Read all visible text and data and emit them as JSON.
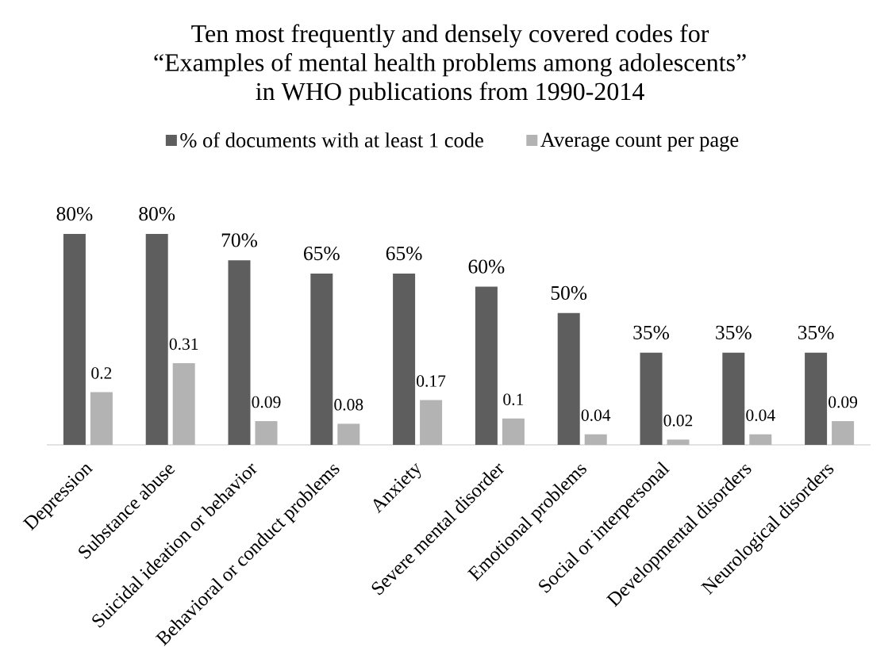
{
  "chart_data": {
    "type": "bar",
    "title": "Ten most frequently and densely covered codes for “Examples of mental health problems among adolescents” in WHO publications from 1990-2014",
    "categories": [
      "Depression",
      "Substance abuse",
      "Suicidal ideation or behavior",
      "Behavioral or conduct problems",
      "Anxiety",
      "Severe mental disorder",
      "Emotional problems",
      "Social or interpersonal",
      "Developmental disorders",
      "Neurological disorders"
    ],
    "series": [
      {
        "name": "% of documents with at least 1 code",
        "color": "#5e5e5e",
        "values": [
          80,
          80,
          70,
          65,
          65,
          60,
          50,
          35,
          35,
          35
        ],
        "value_labels": [
          "80%",
          "80%",
          "70%",
          "65%",
          "65%",
          "60%",
          "50%",
          "35%",
          "35%",
          "35%"
        ]
      },
      {
        "name": "Average count per page",
        "color": "#b3b3b3",
        "axis": "y2",
        "values": [
          0.2,
          0.31,
          0.09,
          0.08,
          0.17,
          0.1,
          0.04,
          0.02,
          0.04,
          0.09
        ],
        "value_labels": [
          "0.2",
          "0.31",
          "0.09",
          "0.08",
          "0.17",
          "0.1",
          "0.04",
          "0.02",
          "0.04",
          "0.09"
        ]
      }
    ],
    "ylim": [
      0,
      80
    ],
    "y2lim": [
      0,
      0.8
    ],
    "tick_labels": "x",
    "legend": "top"
  }
}
